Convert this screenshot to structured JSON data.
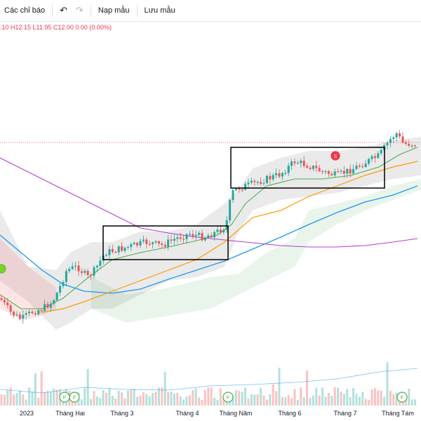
{
  "toolbar": {
    "indicators_label": "Các chỉ báo",
    "undo_icon": "undo-icon",
    "redo_icon": "redo-icon",
    "load_template_label": "Nạp mẫu",
    "save_template_label": "Lưu mẫu"
  },
  "ohlc_text": ".10 H12.15 L11.95 C12.00 0.00 (0.00%)",
  "colors": {
    "up": "#26a69a",
    "down": "#ef5350",
    "ma_fast": "#4caf50",
    "ma_mid": "#ff9800",
    "ma_slow": "#2196f3",
    "ma_long": "#b53dd6",
    "box": "#000000",
    "event_dividend": "#4caf50",
    "event_split": "#f23645"
  },
  "chart_data": {
    "type": "candlestick",
    "x_labels": [
      "2023",
      "Tháng Hai",
      "Tháng 3",
      "Tháng 4",
      "Tháng Năm",
      "Tháng 6",
      "Tháng 7",
      "Tháng Tám"
    ],
    "last_close": 12.0,
    "last_high": 12.15,
    "last_low": 11.95,
    "change": 0.0,
    "change_pct": "0.00%",
    "event_markers": [
      "F",
      "F",
      "F",
      "F",
      "S"
    ],
    "grid": false
  }
}
